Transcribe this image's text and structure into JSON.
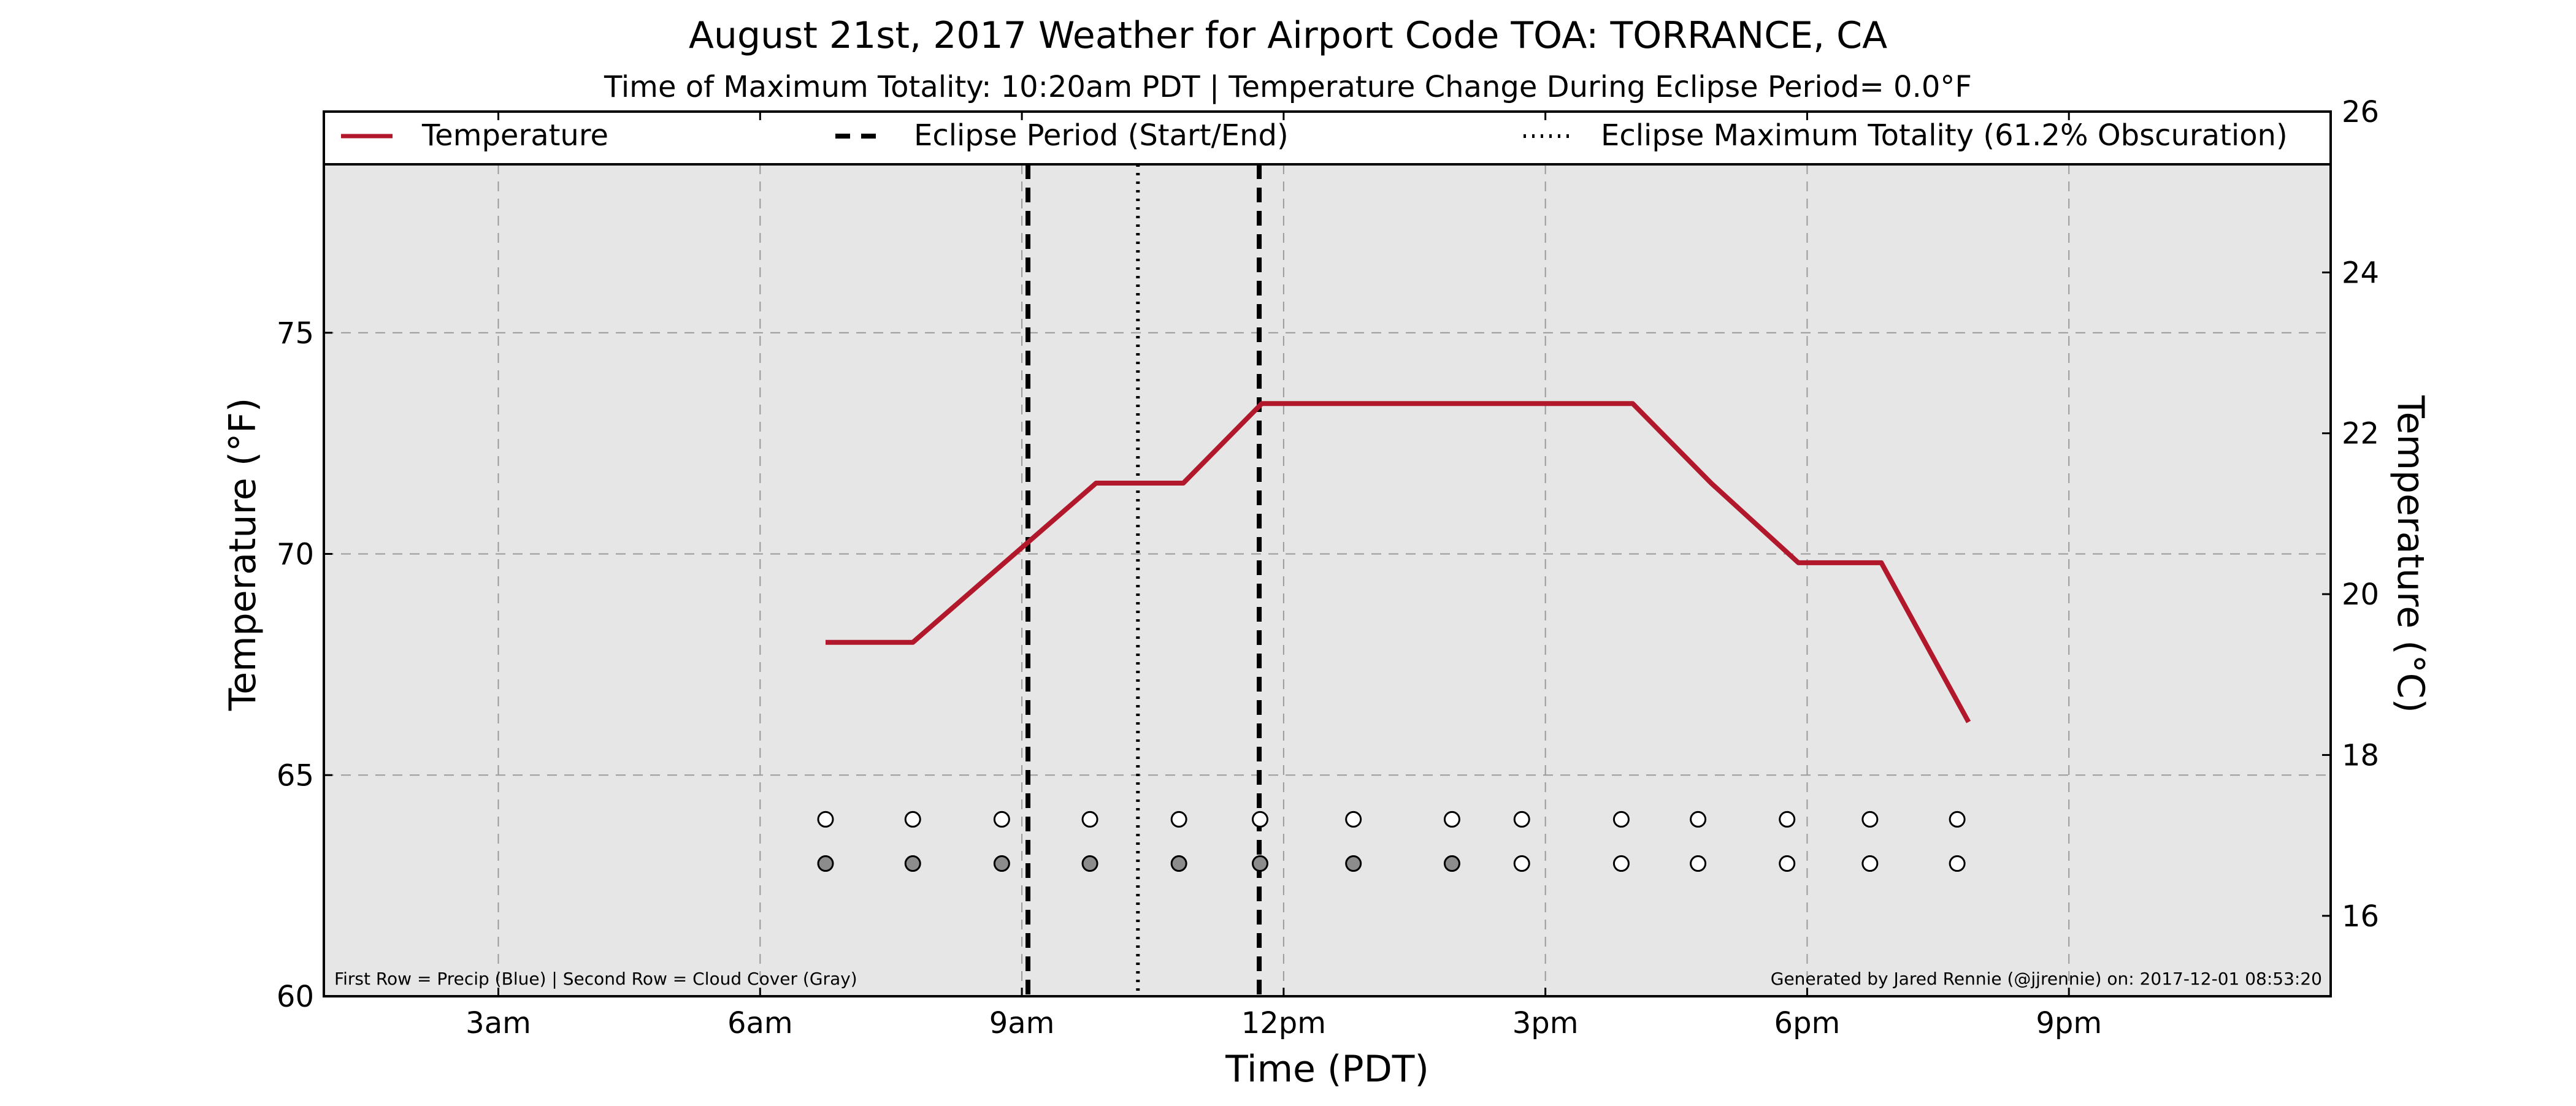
{
  "chart_data": {
    "type": "line",
    "title": "August 21st, 2017 Weather for Airport Code TOA: TORRANCE, CA",
    "subtitle": "Time of Maximum Totality: 10:20am PDT | Temperature Change During Eclipse Period= 0.0°F",
    "xlabel": "Time (PDT)",
    "ylabel": "Temperature (°F)",
    "y2label": "Temperature (°C)",
    "x_ticks": [
      {
        "label": "3am",
        "hour": 3
      },
      {
        "label": "6am",
        "hour": 6
      },
      {
        "label": "9am",
        "hour": 9
      },
      {
        "label": "12pm",
        "hour": 12
      },
      {
        "label": "3pm",
        "hour": 15
      },
      {
        "label": "6pm",
        "hour": 18
      },
      {
        "label": "9pm",
        "hour": 21
      }
    ],
    "xlim_hours": [
      1,
      24
    ],
    "ylim": [
      60,
      80
    ],
    "y_ticks": [
      60,
      65,
      70,
      75
    ],
    "y2lim": [
      15,
      26
    ],
    "y2_ticks": [
      16,
      18,
      20,
      22,
      24,
      26
    ],
    "grid": true,
    "legend": {
      "placement": "top",
      "entries": [
        {
          "label": "Temperature",
          "style": "solid",
          "color": "#b2182b"
        },
        {
          "label": "Eclipse Period (Start/End)",
          "style": "dashed",
          "color": "#000000"
        },
        {
          "label": "Eclipse Maximum Totality (61.2% Obscuration)",
          "style": "dotted",
          "color": "#000000"
        }
      ]
    },
    "series": [
      {
        "name": "Temperature",
        "color": "#b2182b",
        "x_hours": [
          6.75,
          7.75,
          9.85,
          10.85,
          11.75,
          13.0,
          14.0,
          15.0,
          16.0,
          16.9,
          17.9,
          18.85,
          19.85
        ],
        "values": [
          68.0,
          68.0,
          71.6,
          71.6,
          73.4,
          73.4,
          73.4,
          73.4,
          73.4,
          71.6,
          69.8,
          69.8,
          66.2
        ]
      }
    ],
    "eclipse": {
      "start_hour": 9.07,
      "end_hour": 11.72,
      "max_hour": 10.33
    },
    "observations": {
      "hours": [
        6.75,
        7.75,
        8.77,
        9.78,
        10.8,
        11.73,
        12.8,
        13.93,
        14.73,
        15.87,
        16.75,
        17.77,
        18.72,
        19.72
      ],
      "precip_row_y": 64,
      "cloud_row_y": 63,
      "precip": [
        "none",
        "none",
        "none",
        "none",
        "none",
        "none",
        "none",
        "none",
        "none",
        "none",
        "none",
        "none",
        "none",
        "none"
      ],
      "cloud": [
        "gray",
        "gray",
        "gray",
        "gray",
        "gray",
        "gray",
        "gray",
        "gray",
        "clear",
        "clear",
        "clear",
        "clear",
        "clear",
        "clear"
      ]
    },
    "colors": {
      "plot_background": "#e6e6e6",
      "temperature_line": "#b2182b",
      "cloud_gray": "#8c8c8c",
      "clear": "#ffffff"
    },
    "footnote_left": "First Row = Precip (Blue) | Second Row = Cloud Cover (Gray)",
    "footnote_right": "Generated by Jared Rennie (@jjrennie) on: 2017-12-01 08:53:20"
  }
}
